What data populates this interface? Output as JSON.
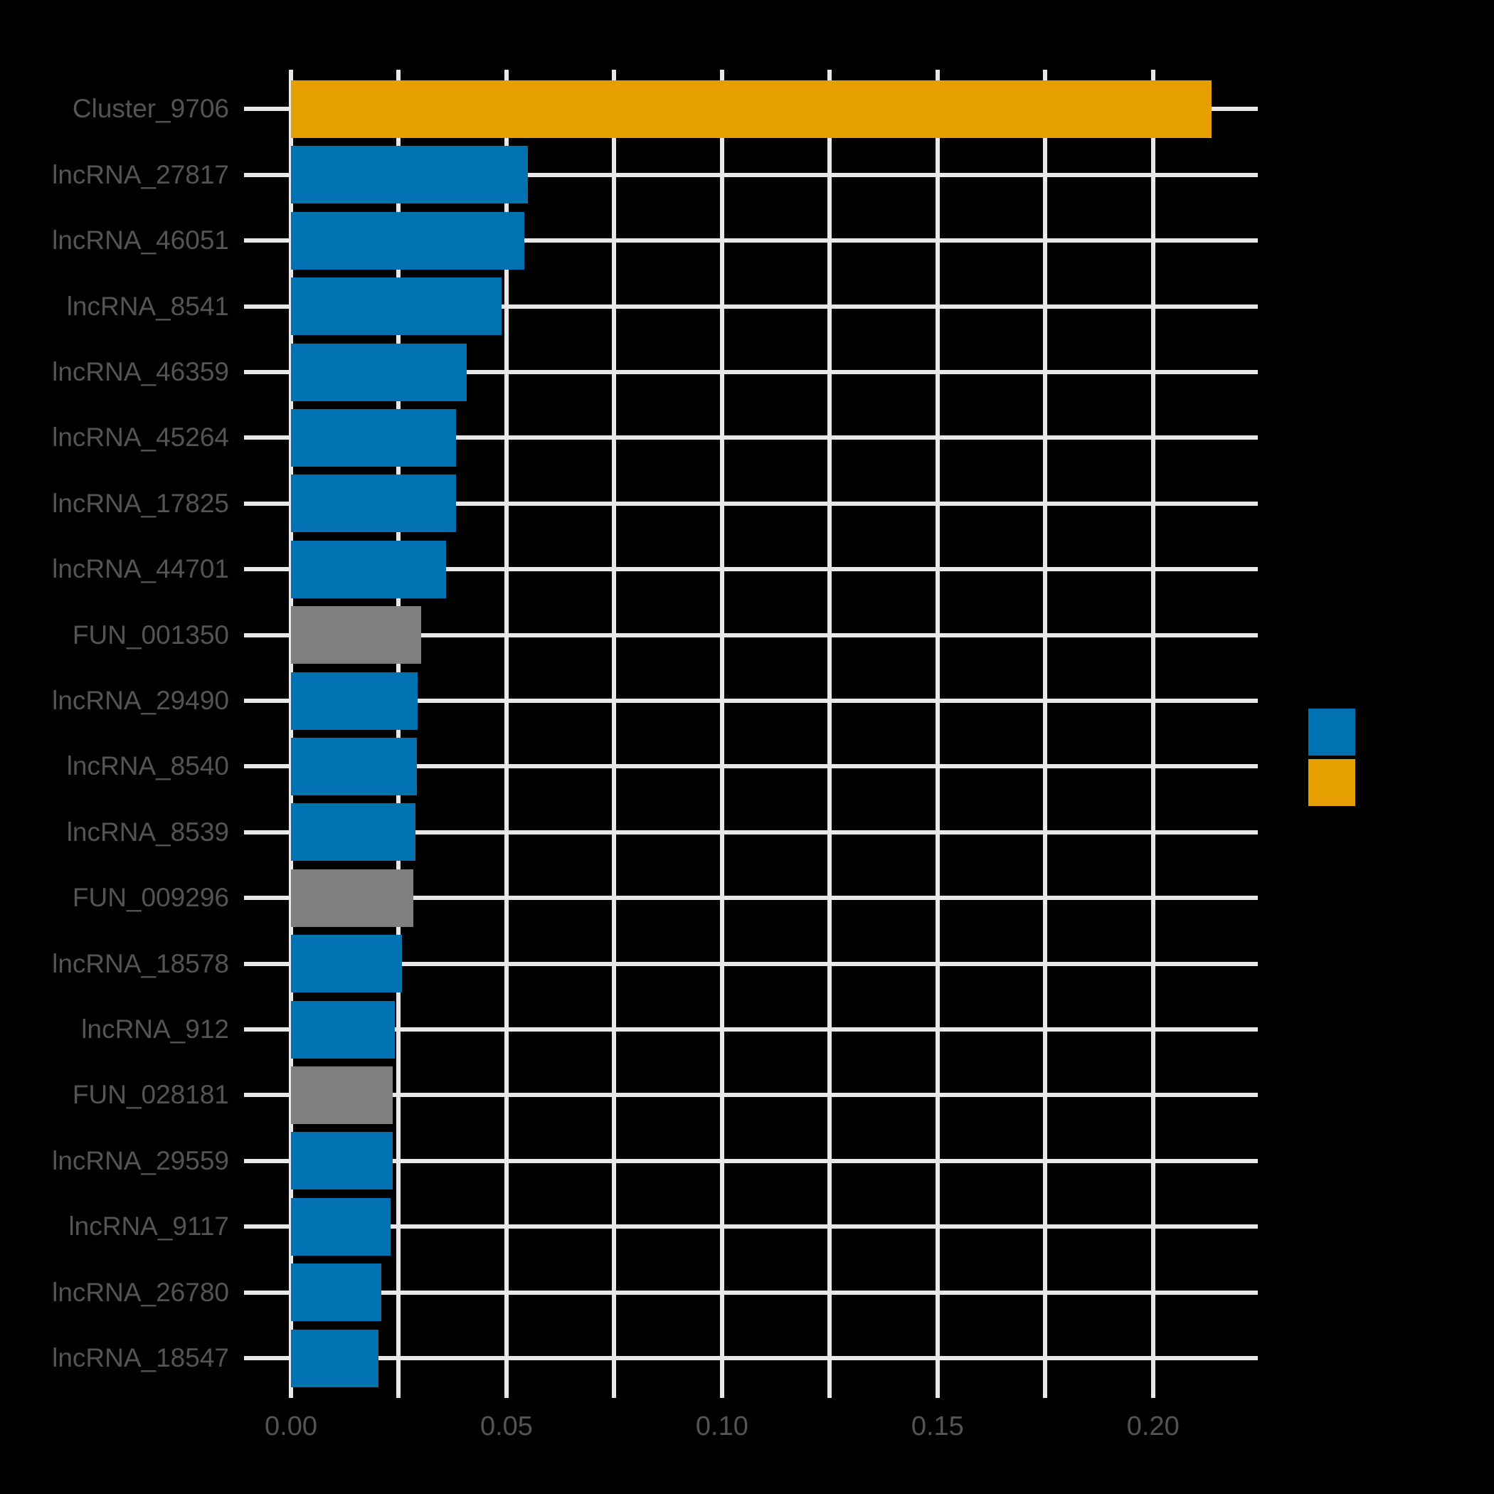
{
  "chart_data": {
    "type": "bar",
    "orientation": "horizontal",
    "title": "",
    "xlabel": "",
    "ylabel": "",
    "categories": [
      "Cluster_9706",
      "lncRNA_27817",
      "lncRNA_46051",
      "lncRNA_8541",
      "lncRNA_46359",
      "lncRNA_45264",
      "lncRNA_17825",
      "lncRNA_44701",
      "FUN_001350",
      "lncRNA_29490",
      "lncRNA_8540",
      "lncRNA_8539",
      "FUN_009296",
      "lncRNA_18578",
      "lncRNA_912",
      "FUN_028181",
      "lncRNA_29559",
      "lncRNA_9117",
      "lncRNA_26780",
      "lncRNA_18547"
    ],
    "values": [
      0.2135,
      0.055,
      0.0542,
      0.0488,
      0.0408,
      0.0383,
      0.0383,
      0.036,
      0.0302,
      0.0294,
      0.0292,
      0.0289,
      0.0284,
      0.0257,
      0.0241,
      0.0236,
      0.0236,
      0.0231,
      0.0209,
      0.0203
    ],
    "groups": [
      "cluster",
      "lncRNA",
      "lncRNA",
      "lncRNA",
      "lncRNA",
      "lncRNA",
      "lncRNA",
      "lncRNA",
      "FUN",
      "lncRNA",
      "lncRNA",
      "lncRNA",
      "FUN",
      "lncRNA",
      "lncRNA",
      "FUN",
      "lncRNA",
      "lncRNA",
      "lncRNA",
      "lncRNA"
    ],
    "group_colors": {
      "lncRNA": "#0072B2",
      "cluster": "#E69F00",
      "FUN": "#7F7F7F"
    },
    "x_axis": {
      "tick_labels": [
        "0.00",
        "0.05",
        "0.10",
        "0.15",
        "0.20"
      ],
      "tick_values": [
        0,
        0.05,
        0.1,
        0.15,
        0.2
      ],
      "minor_grid_step": 0.025,
      "min": 0,
      "max": 0.2243
    },
    "grid": {
      "show": true,
      "color": "#E8E8E8"
    },
    "legend": {
      "position": "right",
      "entries": [
        {
          "name": "lncRNA-series-swatch",
          "color": "#0072B2",
          "label": ""
        },
        {
          "name": "cluster-series-swatch",
          "color": "#E69F00",
          "label": ""
        }
      ]
    },
    "style": {
      "background": "#000000",
      "bar_color_default": "#0072B2",
      "highlight_color": "#E69F00",
      "neutral_color": "#7F7F7F",
      "axis_text_color": "#545454"
    }
  }
}
